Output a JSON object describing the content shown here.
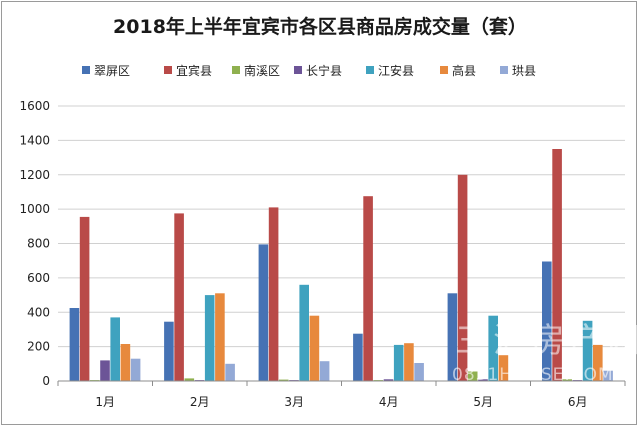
{
  "chart_data": {
    "type": "bar",
    "title": "2018年上半年宜宾市各区县商品房成交量（套）",
    "categories": [
      "1月",
      "2月",
      "3月",
      "4月",
      "5月",
      "6月"
    ],
    "ylim": [
      0,
      1600
    ],
    "yticks": [
      0,
      200,
      400,
      600,
      800,
      1000,
      1200,
      1400,
      1600
    ],
    "grid": true,
    "legend_position": "top",
    "series": [
      {
        "name": "翠屏区",
        "color": "#4672b4",
        "values": [
          425,
          345,
          795,
          275,
          510,
          695
        ]
      },
      {
        "name": "宜宾县",
        "color": "#b94a48",
        "values": [
          955,
          975,
          1010,
          1075,
          1200,
          1350
        ]
      },
      {
        "name": "南溪区",
        "color": "#8fb04f",
        "values": [
          5,
          15,
          8,
          5,
          55,
          10
        ]
      },
      {
        "name": "长宁县",
        "color": "#6c5497",
        "values": [
          120,
          5,
          5,
          10,
          10,
          5
        ]
      },
      {
        "name": "江安县",
        "color": "#3fa2bf",
        "values": [
          370,
          500,
          560,
          210,
          380,
          350
        ]
      },
      {
        "name": "高县",
        "color": "#e7893d",
        "values": [
          215,
          510,
          380,
          220,
          150,
          210
        ]
      },
      {
        "name": "珙县",
        "color": "#93a9d6",
        "values": [
          130,
          100,
          115,
          105,
          0,
          60
        ]
      }
    ]
  },
  "watermark": {
    "main": "三汇房产网",
    "sub": "0831HOUSE.COM"
  }
}
